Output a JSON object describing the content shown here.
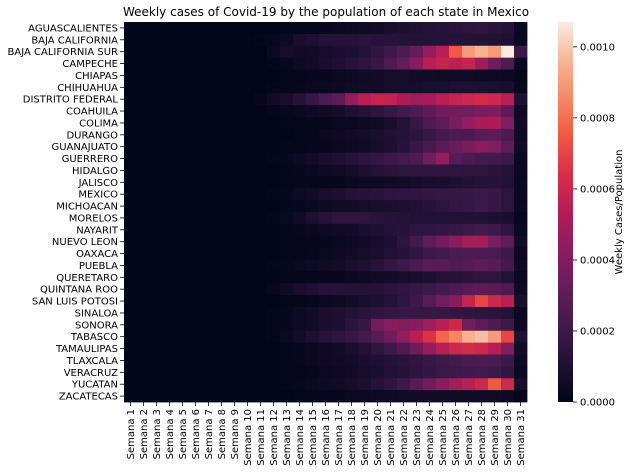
{
  "chart_data": {
    "type": "heatmap",
    "title": "Weekly cases of Covid-19 by the population of each state in Mexico",
    "colorbar_label": "Weekly Cases/Population",
    "colorbar_ticks": [
      "0.0000",
      "0.0002",
      "0.0004",
      "0.0006",
      "0.0008",
      "0.0010"
    ],
    "zlim": [
      0,
      0.00107
    ],
    "colormap": "rocket",
    "rows": [
      "AGUASCALIENTES",
      "BAJA CALIFORNIA",
      "BAJA CALIFORNIA SUR",
      "CAMPECHE",
      "CHIAPAS",
      "CHIHUAHUA",
      "DISTRITO FEDERAL",
      "COAHUILA",
      "COLIMA",
      "DURANGO",
      "GUANAJUATO",
      "GUERRERO",
      "HIDALGO",
      "JALISCO",
      "MEXICO",
      "MICHOACAN",
      "MORELOS",
      "NAYARIT",
      "NUEVO LEON",
      "OAXACA",
      "PUEBLA",
      "QUERETARO",
      "QUINTANA ROO",
      "SAN LUIS POTOSI",
      "SINALOA",
      "SONORA",
      "TABASCO",
      "TAMAULIPAS",
      "TLAXCALA",
      "VERACRUZ",
      "YUCATAN",
      "ZACATECAS"
    ],
    "columns": [
      "Semana 1",
      "Semana 2",
      "Semana 3",
      "Semana 4",
      "Semana 5",
      "Semana 6",
      "Semana 7",
      "Semana 8",
      "Semana 9",
      "Semana 10",
      "Semana 11",
      "Semana 12",
      "Semana 13",
      "Semana 14",
      "Semana 15",
      "Semana 16",
      "Semana 17",
      "Semana 18",
      "Semana 19",
      "Semana 20",
      "Semana 21",
      "Semana 22",
      "Semana 23",
      "Semana 24",
      "Semana 25",
      "Semana 26",
      "Semana 27",
      "Semana 28",
      "Semana 29",
      "Semana 30",
      "Semana 31"
    ],
    "values": [
      [
        0,
        0,
        0,
        0,
        0,
        0,
        0,
        0,
        0,
        0,
        0,
        0,
        1e-05,
        1e-05,
        1e-05,
        2e-05,
        3e-05,
        4e-05,
        5e-05,
        6e-05,
        8e-05,
        0.0001,
        0.00011,
        0.00012,
        0.00013,
        0.00014,
        0.00015,
        0.00016,
        0.00014,
        0.00012,
        3e-05
      ],
      [
        0,
        0,
        0,
        0,
        0,
        0,
        0,
        0,
        0,
        0,
        1e-05,
        2e-05,
        4e-05,
        8e-05,
        0.0001,
        0.00012,
        0.00012,
        0.00013,
        0.00014,
        0.00013,
        0.00013,
        0.00012,
        0.00012,
        0.00012,
        0.00012,
        0.00013,
        0.00012,
        0.00012,
        0.00011,
        0.0001,
        3e-05
      ],
      [
        0,
        0,
        0,
        0,
        0,
        0,
        0,
        0,
        0,
        0,
        0,
        3e-05,
        7e-05,
        5e-05,
        6e-05,
        7e-05,
        9e-05,
        0.0001,
        0.00012,
        0.00016,
        0.0002,
        0.00025,
        0.00032,
        0.00045,
        0.00055,
        0.00075,
        0.0009,
        0.00095,
        0.0009,
        0.00107,
        0.0002
      ],
      [
        0,
        0,
        0,
        0,
        0,
        0,
        0,
        0,
        0,
        0,
        0,
        1e-05,
        2e-05,
        4e-05,
        6e-05,
        8e-05,
        0.0001,
        0.00013,
        0.00015,
        0.00018,
        0.00025,
        0.00032,
        0.00042,
        0.00055,
        0.00058,
        0.00056,
        0.00058,
        0.00048,
        0.00035,
        0.00025,
        3e-05
      ],
      [
        0,
        0,
        0,
        0,
        0,
        0,
        0,
        0,
        0,
        0,
        0,
        0,
        1e-05,
        1e-05,
        2e-05,
        2e-05,
        3e-05,
        4e-05,
        5e-05,
        6e-05,
        7e-05,
        7e-05,
        6e-05,
        6e-05,
        5e-05,
        5e-05,
        5e-05,
        4e-05,
        4e-05,
        3e-05,
        1e-05
      ],
      [
        0,
        0,
        0,
        0,
        0,
        0,
        0,
        0,
        0,
        0,
        0,
        1e-05,
        1e-05,
        2e-05,
        3e-05,
        3e-05,
        4e-05,
        5e-05,
        6e-05,
        6e-05,
        7e-05,
        7e-05,
        7e-05,
        8e-05,
        9e-05,
        0.0001,
        0.0001,
        0.0001,
        9e-05,
        8e-05,
        2e-05
      ],
      [
        0,
        0,
        0,
        0,
        0,
        0,
        0,
        0,
        0,
        0,
        2e-05,
        5e-05,
        8e-05,
        0.00013,
        0.00018,
        0.00025,
        0.0003,
        0.00045,
        0.00055,
        0.00058,
        0.00057,
        0.00052,
        0.00048,
        0.0005,
        0.00055,
        0.00058,
        0.0006,
        0.00062,
        0.0006,
        0.00055,
        0.0001
      ],
      [
        0,
        0,
        0,
        0,
        0,
        0,
        0,
        0,
        0,
        0,
        0,
        1e-05,
        2e-05,
        3e-05,
        4e-05,
        5e-05,
        7e-05,
        0.0001,
        0.00012,
        0.00015,
        0.00018,
        0.00022,
        0.00025,
        0.0003,
        0.00035,
        0.00035,
        0.00035,
        0.00038,
        0.0004,
        0.0003,
        4e-05
      ],
      [
        0,
        0,
        0,
        0,
        0,
        0,
        0,
        0,
        0,
        0,
        0,
        0,
        1e-05,
        1e-05,
        1e-05,
        2e-05,
        3e-05,
        3e-05,
        4e-05,
        5e-05,
        8e-05,
        0.00012,
        0.00018,
        0.00025,
        0.0003,
        0.00038,
        0.00045,
        0.0005,
        0.00052,
        0.0004,
        5e-05
      ],
      [
        0,
        0,
        0,
        0,
        0,
        0,
        0,
        0,
        0,
        0,
        0,
        0,
        0,
        1e-05,
        2e-05,
        3e-05,
        4e-05,
        5e-05,
        6e-05,
        8e-05,
        0.0001,
        0.00012,
        0.00015,
        0.00018,
        0.00022,
        0.00025,
        0.00025,
        0.00028,
        0.0003,
        0.00025,
        4e-05
      ],
      [
        0,
        0,
        0,
        0,
        0,
        0,
        0,
        0,
        0,
        0,
        0,
        0,
        1e-05,
        1e-05,
        2e-05,
        2e-05,
        3e-05,
        4e-05,
        5e-05,
        7e-05,
        0.0001,
        0.00013,
        0.00018,
        0.00023,
        0.00028,
        0.00033,
        0.00038,
        0.00042,
        0.0004,
        0.0003,
        5e-05
      ],
      [
        0,
        0,
        0,
        0,
        0,
        0,
        0,
        0,
        0,
        0,
        0,
        1e-05,
        2e-05,
        4e-05,
        6e-05,
        8e-05,
        0.0001,
        0.00012,
        0.00015,
        0.00017,
        0.0002,
        0.00022,
        0.00025,
        0.00035,
        0.00045,
        0.00028,
        0.00025,
        0.00022,
        0.00022,
        0.0002,
        3e-05
      ],
      [
        0,
        0,
        0,
        0,
        0,
        0,
        0,
        0,
        0,
        0,
        0,
        0,
        1e-05,
        2e-05,
        3e-05,
        4e-05,
        5e-05,
        7e-05,
        0.0001,
        0.00012,
        0.00014,
        0.00015,
        0.00015,
        0.00016,
        0.00016,
        0.00016,
        0.00015,
        0.00015,
        0.00014,
        0.00012,
        3e-05
      ],
      [
        0,
        0,
        0,
        0,
        0,
        0,
        0,
        0,
        0,
        0,
        0,
        0,
        1e-05,
        1e-05,
        1e-05,
        2e-05,
        2e-05,
        3e-05,
        4e-05,
        4e-05,
        5e-05,
        6e-05,
        7e-05,
        8e-05,
        9e-05,
        0.0001,
        0.00011,
        0.00012,
        0.00013,
        0.00011,
        3e-05
      ],
      [
        0,
        0,
        0,
        0,
        0,
        0,
        0,
        0,
        0,
        0,
        0,
        1e-05,
        2e-05,
        4e-05,
        6e-05,
        8e-05,
        0.0001,
        0.00012,
        0.00013,
        0.00014,
        0.00015,
        0.00016,
        0.00016,
        0.00017,
        0.00018,
        0.00018,
        0.00018,
        0.00019,
        0.00018,
        0.00015,
        3e-05
      ],
      [
        0,
        0,
        0,
        0,
        0,
        0,
        0,
        0,
        0,
        0,
        0,
        0,
        1e-05,
        2e-05,
        3e-05,
        4e-05,
        5e-05,
        6e-05,
        7e-05,
        8e-05,
        9e-05,
        0.0001,
        0.00011,
        0.00013,
        0.00015,
        0.00017,
        0.00018,
        0.0002,
        0.00018,
        0.00015,
        3e-05
      ],
      [
        0,
        0,
        0,
        0,
        0,
        0,
        0,
        0,
        0,
        0,
        0,
        1e-05,
        3e-05,
        6e-05,
        0.0001,
        0.00013,
        0.00015,
        0.00015,
        0.00015,
        0.00014,
        0.00013,
        0.00012,
        0.00011,
        0.00011,
        0.00011,
        0.00011,
        0.00011,
        0.00011,
        0.0001,
        9e-05,
        2e-05
      ],
      [
        0,
        0,
        0,
        0,
        0,
        0,
        0,
        0,
        0,
        0,
        0,
        0,
        1e-05,
        2e-05,
        3e-05,
        4e-05,
        5e-05,
        6e-05,
        8e-05,
        0.0001,
        0.00012,
        0.00013,
        0.00015,
        0.00016,
        0.00017,
        0.00018,
        0.0002,
        0.00022,
        0.0002,
        0.00016,
        3e-05
      ],
      [
        0,
        0,
        0,
        0,
        0,
        0,
        0,
        0,
        0,
        0,
        0,
        0,
        1e-05,
        1e-05,
        2e-05,
        2e-05,
        3e-05,
        4e-05,
        5e-05,
        7e-05,
        0.0001,
        0.00015,
        0.00022,
        0.0003,
        0.00036,
        0.00042,
        0.0005,
        0.0005,
        0.00038,
        0.0003,
        5e-05
      ],
      [
        0,
        0,
        0,
        0,
        0,
        0,
        0,
        0,
        0,
        0,
        0,
        0,
        1e-05,
        1e-05,
        2e-05,
        3e-05,
        4e-05,
        5e-05,
        7e-05,
        9e-05,
        0.00011,
        0.00013,
        0.00016,
        0.0002,
        0.00022,
        0.00024,
        0.00025,
        0.00025,
        0.00024,
        0.0002,
        3e-05
      ],
      [
        0,
        0,
        0,
        0,
        0,
        0,
        0,
        0,
        0,
        0,
        0,
        1e-05,
        2e-05,
        3e-05,
        4e-05,
        5e-05,
        6e-05,
        8e-05,
        0.0001,
        0.00013,
        0.00017,
        0.0002,
        0.00025,
        0.00028,
        0.00028,
        0.00026,
        0.00028,
        0.0003,
        0.00028,
        0.00022,
        4e-05
      ],
      [
        0,
        0,
        0,
        0,
        0,
        0,
        0,
        0,
        0,
        0,
        0,
        0,
        1e-05,
        1e-05,
        1e-05,
        2e-05,
        2e-05,
        3e-05,
        4e-05,
        5e-05,
        6e-05,
        7e-05,
        8e-05,
        0.0001,
        0.00012,
        0.00013,
        0.00014,
        0.00015,
        0.00015,
        0.00012,
        3e-05
      ],
      [
        0,
        0,
        0,
        0,
        0,
        0,
        0,
        0,
        0,
        0,
        0,
        2e-05,
        5e-05,
        8e-05,
        0.0001,
        0.00012,
        0.00013,
        0.00012,
        0.00012,
        0.00012,
        0.00014,
        0.00016,
        0.00018,
        0.0002,
        0.00022,
        0.00025,
        0.00028,
        0.0003,
        0.00028,
        0.00025,
        4e-05
      ],
      [
        0,
        0,
        0,
        0,
        0,
        0,
        0,
        0,
        0,
        0,
        0,
        0,
        1e-05,
        1e-05,
        2e-05,
        3e-05,
        4e-05,
        6e-05,
        8e-05,
        0.0001,
        0.00012,
        0.00015,
        0.0002,
        0.00028,
        0.00035,
        0.00042,
        0.00058,
        0.0007,
        0.0006,
        0.00055,
        8e-05
      ],
      [
        0,
        0,
        0,
        0,
        0,
        0,
        0,
        0,
        0,
        0,
        0,
        1e-05,
        2e-05,
        4e-05,
        6e-05,
        8e-05,
        0.0001,
        0.00012,
        0.00014,
        0.00016,
        0.00017,
        0.00018,
        0.00018,
        0.00018,
        0.00018,
        0.00017,
        0.00016,
        0.00015,
        0.00014,
        0.00012,
        3e-05
      ],
      [
        0,
        0,
        0,
        0,
        0,
        0,
        0,
        0,
        0,
        0,
        0,
        1e-05,
        2e-05,
        4e-05,
        6e-05,
        8e-05,
        0.0001,
        0.00014,
        0.00018,
        0.00035,
        0.00042,
        0.0004,
        0.00042,
        0.00048,
        0.00055,
        0.0006,
        0.00035,
        0.0003,
        0.00025,
        0.0002,
        4e-05
      ],
      [
        0,
        0,
        0,
        0,
        0,
        0,
        0,
        0,
        0,
        0,
        0,
        1e-05,
        3e-05,
        6e-05,
        0.0001,
        0.00013,
        0.00015,
        0.00018,
        0.00022,
        0.00028,
        0.00035,
        0.00045,
        0.00055,
        0.00065,
        0.00078,
        0.00085,
        0.00095,
        0.00098,
        0.0009,
        0.0007,
        0.0001
      ],
      [
        0,
        0,
        0,
        0,
        0,
        0,
        0,
        0,
        0,
        0,
        0,
        0,
        1e-05,
        2e-05,
        3e-05,
        4e-05,
        6e-05,
        8e-05,
        0.00011,
        0.00015,
        0.0002,
        0.00026,
        0.00035,
        0.00045,
        0.00055,
        0.0006,
        0.00062,
        0.0006,
        0.00055,
        0.0004,
        6e-05
      ],
      [
        0,
        0,
        0,
        0,
        0,
        0,
        0,
        0,
        0,
        0,
        0,
        0,
        1e-05,
        2e-05,
        3e-05,
        4e-05,
        5e-05,
        6e-05,
        8e-05,
        0.0001,
        0.00012,
        0.00014,
        0.00016,
        0.00018,
        0.0002,
        0.00022,
        0.00024,
        0.00025,
        0.00024,
        0.0002,
        4e-05
      ],
      [
        0,
        0,
        0,
        0,
        0,
        0,
        0,
        0,
        0,
        0,
        0,
        0,
        1e-05,
        1e-05,
        2e-05,
        3e-05,
        4e-05,
        5e-05,
        7e-05,
        9e-05,
        0.00011,
        0.00013,
        0.00015,
        0.00017,
        0.00019,
        0.0002,
        0.00021,
        0.00022,
        0.0002,
        0.00017,
        3e-05
      ],
      [
        0,
        0,
        0,
        0,
        0,
        0,
        0,
        0,
        0,
        0,
        0,
        0,
        1e-05,
        2e-05,
        3e-05,
        4e-05,
        5e-05,
        7e-05,
        9e-05,
        0.00012,
        0.00016,
        0.0002,
        0.00028,
        0.00035,
        0.00042,
        0.0005,
        0.00055,
        0.0006,
        0.00075,
        0.0006,
        8e-05
      ],
      [
        0,
        0,
        0,
        0,
        0,
        0,
        0,
        0,
        0,
        0,
        0,
        0,
        0,
        1e-05,
        1e-05,
        2e-05,
        2e-05,
        3e-05,
        3e-05,
        4e-05,
        4e-05,
        5e-05,
        5e-05,
        6e-05,
        6e-05,
        6e-05,
        6e-05,
        6e-05,
        5e-05,
        4e-05,
        1e-05
      ]
    ]
  }
}
